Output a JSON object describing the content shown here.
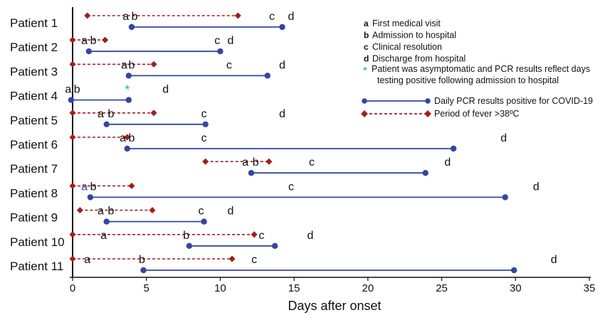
{
  "chart_data": {
    "type": "timeline",
    "xlabel": "Days after onset",
    "xlim": [
      0,
      35
    ],
    "xticks": [
      0,
      5,
      10,
      15,
      20,
      25,
      30,
      35
    ],
    "colors": {
      "pcr": "#3446a3",
      "fever": "#a11f1f",
      "asymptomatic": "#35b36b"
    },
    "legend": {
      "events": [
        {
          "key": "a",
          "text": "First medical visit"
        },
        {
          "key": "b",
          "text": "Admission to hospital"
        },
        {
          "key": "c",
          "text": "Clinical resolution"
        },
        {
          "key": "d",
          "text": "Discharge from hospital"
        }
      ],
      "asymptomatic": {
        "key": "*",
        "text_line1": "Patient was asymptomatic and PCR results reflect days",
        "text_line2": "testing positive following admission to hospital"
      },
      "series": [
        {
          "id": "pcr",
          "text": "Daily PCR results positive for COVID-19"
        },
        {
          "id": "fever",
          "text": "Period of fever >38ºC"
        }
      ]
    },
    "patients": [
      {
        "label": "Patient 1",
        "fever": [
          1,
          11.2
        ],
        "pcr": [
          4,
          14.2
        ],
        "events": [
          {
            "key": "a",
            "x": 3.6
          },
          {
            "key": "b",
            "x": 4.2
          },
          {
            "key": "c",
            "x": 13.5
          },
          {
            "key": "d",
            "x": 14.8
          }
        ]
      },
      {
        "label": "Patient 2",
        "fever": [
          0,
          2.2
        ],
        "pcr": [
          1.1,
          10
        ],
        "events": [
          {
            "key": "a",
            "x": 0.8
          },
          {
            "key": "b",
            "x": 1.4
          },
          {
            "key": "c",
            "x": 9.8
          },
          {
            "key": "d",
            "x": 10.7
          }
        ]
      },
      {
        "label": "Patient 3",
        "fever": [
          0,
          5.5
        ],
        "pcr": [
          3.8,
          13.2
        ],
        "events": [
          {
            "key": "a",
            "x": 3.5
          },
          {
            "key": "b",
            "x": 4.0
          },
          {
            "key": "c",
            "x": 10.6
          },
          {
            "key": "d",
            "x": 14.2
          }
        ]
      },
      {
        "label": "Patient 4",
        "fever": null,
        "pcr": [
          -0.1,
          3.8
        ],
        "asymptomatic_x": 3.7,
        "events": [
          {
            "key": "a",
            "x": -0.3
          },
          {
            "key": "b",
            "x": 0.3
          },
          {
            "key": "d",
            "x": 6.3
          }
        ]
      },
      {
        "label": "Patient 5",
        "fever": [
          0,
          5.5
        ],
        "pcr": [
          2.3,
          9
        ],
        "events": [
          {
            "key": "a",
            "x": 1.9
          },
          {
            "key": "b",
            "x": 2.6
          },
          {
            "key": "c",
            "x": 8.9
          },
          {
            "key": "d",
            "x": 14.2
          }
        ]
      },
      {
        "label": "Patient 6",
        "fever": [
          0,
          3.7
        ],
        "pcr": [
          3.7,
          25.8
        ],
        "events": [
          {
            "key": "a",
            "x": 3.4
          },
          {
            "key": "b",
            "x": 4.0
          },
          {
            "key": "c",
            "x": 8.9
          },
          {
            "key": "d",
            "x": 29.2
          }
        ]
      },
      {
        "label": "Patient 7",
        "fever": [
          9,
          13.3
        ],
        "pcr": [
          12.1,
          23.9
        ],
        "events": [
          {
            "key": "a",
            "x": 11.7
          },
          {
            "key": "b",
            "x": 12.4
          },
          {
            "key": "c",
            "x": 16.2
          },
          {
            "key": "d",
            "x": 25.4
          }
        ]
      },
      {
        "label": "Patient 8",
        "fever": [
          0,
          4
        ],
        "pcr": [
          1.2,
          29.3
        ],
        "events": [
          {
            "key": "a",
            "x": 0.8,
            "tint": "pcr"
          },
          {
            "key": "b",
            "x": 1.4
          },
          {
            "key": "c",
            "x": 14.8
          },
          {
            "key": "d",
            "x": 31.4
          }
        ]
      },
      {
        "label": "Patient 9",
        "fever": [
          0.5,
          5.4
        ],
        "pcr": [
          2.3,
          8.9
        ],
        "events": [
          {
            "key": "a",
            "x": 1.9
          },
          {
            "key": "b",
            "x": 2.6
          },
          {
            "key": "c",
            "x": 8.7
          },
          {
            "key": "d",
            "x": 10.7
          }
        ]
      },
      {
        "label": "Patient 10",
        "fever": [
          0,
          12.3
        ],
        "pcr": [
          7.9,
          13.7
        ],
        "events": [
          {
            "key": "a",
            "x": 2.1
          },
          {
            "key": "b",
            "x": 7.7
          },
          {
            "key": "c",
            "x": 12.8
          },
          {
            "key": "d",
            "x": 16.1
          }
        ]
      },
      {
        "label": "Patient 11",
        "fever": [
          0,
          10.8
        ],
        "pcr": [
          4.8,
          29.9
        ],
        "events": [
          {
            "key": "a",
            "x": 1.0
          },
          {
            "key": "b",
            "x": 4.7
          },
          {
            "key": "c",
            "x": 12.3
          },
          {
            "key": "d",
            "x": 32.6
          }
        ]
      }
    ]
  }
}
